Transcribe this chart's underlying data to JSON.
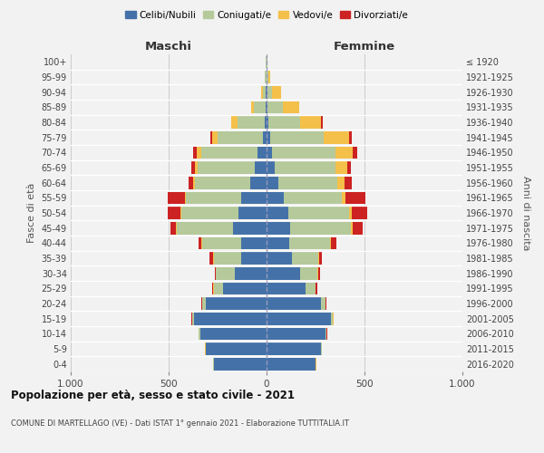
{
  "age_groups": [
    "0-4",
    "5-9",
    "10-14",
    "15-19",
    "20-24",
    "25-29",
    "30-34",
    "35-39",
    "40-44",
    "45-49",
    "50-54",
    "55-59",
    "60-64",
    "65-69",
    "70-74",
    "75-79",
    "80-84",
    "85-89",
    "90-94",
    "95-99",
    "100+"
  ],
  "birth_years": [
    "2016-2020",
    "2011-2015",
    "2006-2010",
    "2001-2005",
    "1996-2000",
    "1991-1995",
    "1986-1990",
    "1981-1985",
    "1976-1980",
    "1971-1975",
    "1966-1970",
    "1961-1965",
    "1956-1960",
    "1951-1955",
    "1946-1950",
    "1941-1945",
    "1936-1940",
    "1931-1935",
    "1926-1930",
    "1921-1925",
    "≤ 1920"
  ],
  "maschi": {
    "celibi": [
      270,
      310,
      340,
      370,
      310,
      220,
      160,
      130,
      130,
      170,
      145,
      130,
      85,
      60,
      45,
      20,
      10,
      5,
      3,
      2,
      2
    ],
    "coniugati": [
      2,
      2,
      5,
      10,
      20,
      50,
      100,
      140,
      200,
      290,
      290,
      280,
      280,
      290,
      290,
      230,
      140,
      60,
      15,
      5,
      2
    ],
    "vedovi": [
      1,
      1,
      1,
      1,
      1,
      1,
      1,
      1,
      2,
      3,
      5,
      5,
      10,
      15,
      20,
      30,
      30,
      15,
      8,
      3,
      1
    ],
    "divorziati": [
      1,
      1,
      2,
      2,
      2,
      5,
      5,
      20,
      15,
      30,
      65,
      90,
      25,
      20,
      20,
      5,
      0,
      0,
      0,
      0,
      0
    ]
  },
  "femmine": {
    "nubili": [
      250,
      280,
      300,
      330,
      280,
      200,
      170,
      130,
      115,
      120,
      110,
      90,
      60,
      40,
      30,
      20,
      10,
      5,
      3,
      2,
      2
    ],
    "coniugate": [
      2,
      2,
      5,
      10,
      20,
      50,
      90,
      135,
      210,
      310,
      310,
      295,
      300,
      310,
      320,
      270,
      160,
      80,
      25,
      8,
      2
    ],
    "vedove": [
      1,
      1,
      1,
      1,
      1,
      2,
      2,
      2,
      5,
      8,
      15,
      20,
      40,
      60,
      90,
      130,
      110,
      80,
      45,
      10,
      2
    ],
    "divorziate": [
      1,
      1,
      2,
      2,
      3,
      5,
      10,
      15,
      25,
      55,
      80,
      100,
      35,
      20,
      25,
      15,
      5,
      0,
      0,
      0,
      0
    ]
  },
  "colors": {
    "celibi": "#4472a8",
    "coniugati": "#b5c99a",
    "vedovi": "#f4c04a",
    "divorziati": "#cc2222"
  },
  "xlim": 1000,
  "title": "Popolazione per età, sesso e stato civile - 2021",
  "subtitle": "COMUNE DI MARTELLAGO (VE) - Dati ISTAT 1° gennaio 2021 - Elaborazione TUTTITALIA.IT",
  "ylabel_left": "Fasce di età",
  "ylabel_right": "Anni di nascita",
  "xlabel_left": "Maschi",
  "xlabel_right": "Femmine",
  "bg_color": "#f2f2f2",
  "grid_color": "#cccccc",
  "legend_labels": [
    "Celibi/Nubili",
    "Coniugati/e",
    "Vedovi/e",
    "Divorziati/e"
  ]
}
